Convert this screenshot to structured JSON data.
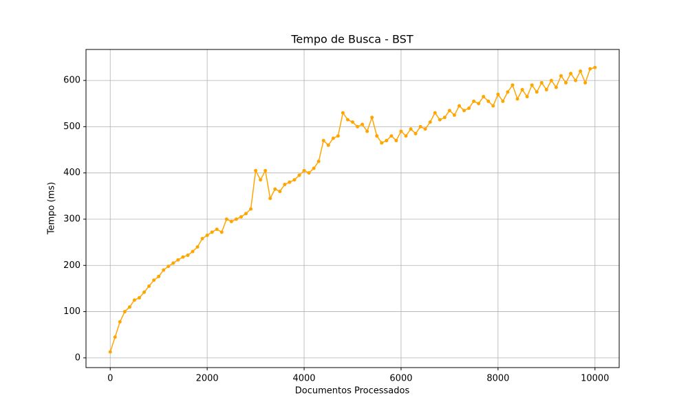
{
  "chart_data": {
    "type": "line",
    "title": "Tempo de Busca - BST",
    "xlabel": "Documentos Processados",
    "ylabel": "Tempo (ms)",
    "x": [
      0,
      100,
      200,
      300,
      400,
      500,
      600,
      700,
      800,
      900,
      1000,
      1100,
      1200,
      1300,
      1400,
      1500,
      1600,
      1700,
      1800,
      1900,
      2000,
      2100,
      2200,
      2300,
      2400,
      2500,
      2600,
      2700,
      2800,
      2900,
      3000,
      3100,
      3200,
      3300,
      3400,
      3500,
      3600,
      3700,
      3800,
      3900,
      4000,
      4100,
      4200,
      4300,
      4400,
      4500,
      4600,
      4700,
      4800,
      4900,
      5000,
      5100,
      5200,
      5300,
      5400,
      5500,
      5600,
      5700,
      5800,
      5900,
      6000,
      6100,
      6200,
      6300,
      6400,
      6500,
      6600,
      6700,
      6800,
      6900,
      7000,
      7100,
      7200,
      7300,
      7400,
      7500,
      7600,
      7700,
      7800,
      7900,
      8000,
      8100,
      8200,
      8300,
      8400,
      8500,
      8600,
      8700,
      8800,
      8900,
      9000,
      9100,
      9200,
      9300,
      9400,
      9500,
      9600,
      9700,
      9800,
      9900,
      10000
    ],
    "series": [
      {
        "name": "BST",
        "color": "#ffa500",
        "values": [
          13,
          45,
          78,
          100,
          110,
          125,
          130,
          142,
          155,
          168,
          176,
          190,
          198,
          205,
          212,
          218,
          222,
          230,
          240,
          258,
          265,
          272,
          278,
          272,
          300,
          295,
          300,
          305,
          312,
          322,
          405,
          385,
          405,
          345,
          365,
          360,
          375,
          380,
          385,
          395,
          405,
          400,
          410,
          425,
          470,
          460,
          475,
          480,
          530,
          515,
          510,
          500,
          505,
          490,
          520,
          480,
          465,
          470,
          480,
          470,
          490,
          480,
          495,
          485,
          500,
          495,
          510,
          530,
          515,
          520,
          535,
          525,
          545,
          535,
          540,
          555,
          550,
          565,
          555,
          545,
          570,
          555,
          575,
          590,
          560,
          580,
          565,
          590,
          575,
          595,
          580,
          600,
          585,
          610,
          595,
          615,
          600,
          620,
          595,
          625,
          628
        ]
      }
    ],
    "xlim": [
      -500,
      10500
    ],
    "ylim": [
      -21,
      667
    ],
    "xticks": [
      0,
      2000,
      4000,
      6000,
      8000,
      10000
    ],
    "yticks": [
      0,
      100,
      200,
      300,
      400,
      500,
      600
    ],
    "grid": true
  }
}
